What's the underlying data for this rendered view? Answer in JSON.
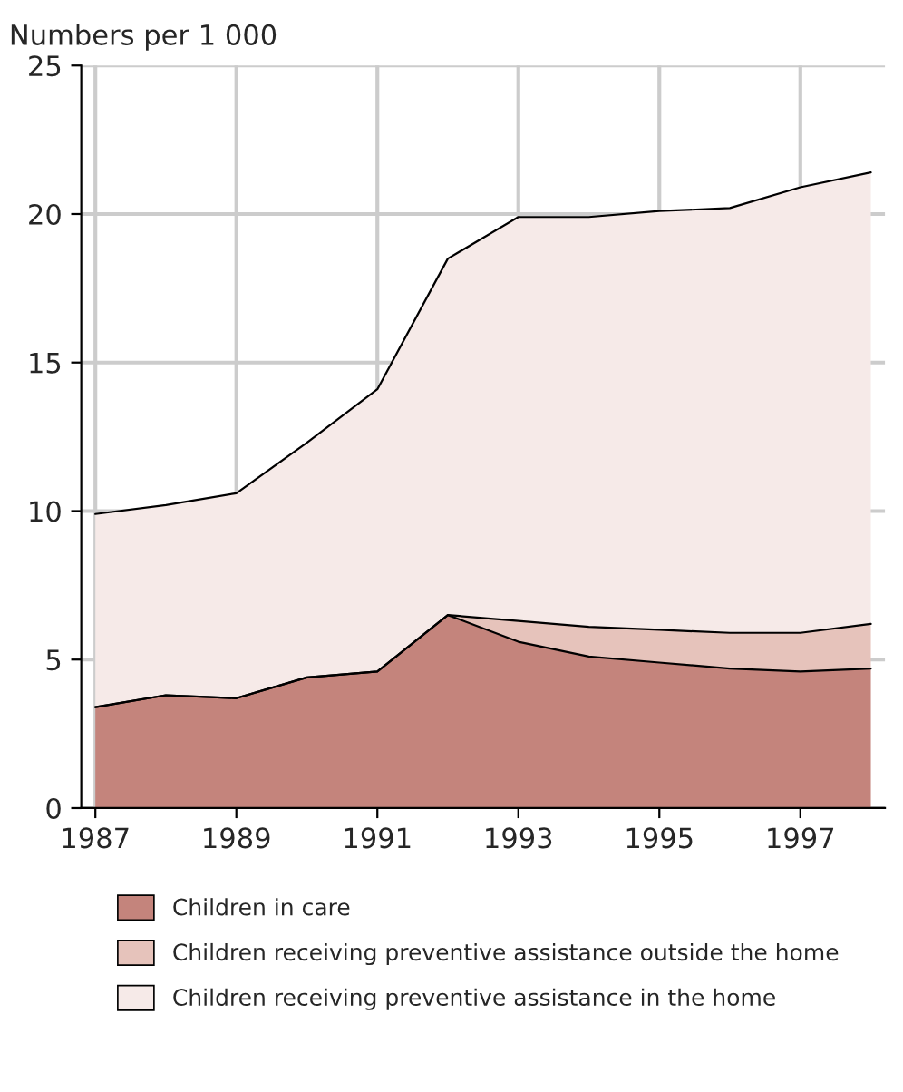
{
  "chart_data": {
    "type": "area",
    "stacked": true,
    "ylabel": "Numbers per 1 000",
    "x": [
      1987,
      1988,
      1989,
      1990,
      1991,
      1992,
      1993,
      1994,
      1995,
      1996,
      1997,
      1998
    ],
    "series": [
      {
        "name": "Children in care",
        "color": "#c4847c",
        "values": [
          3.4,
          3.8,
          3.7,
          4.4,
          4.6,
          6.5,
          5.6,
          5.1,
          4.9,
          4.7,
          4.6,
          4.7
        ]
      },
      {
        "name": "Children receiving preventive assistance outside the home",
        "color": "#e6c3bb",
        "values": [
          0,
          0,
          0,
          0,
          0,
          0,
          0.7,
          1.0,
          1.1,
          1.2,
          1.3,
          1.5
        ]
      },
      {
        "name": "Children receiving preventive assistance in the home",
        "color": "#f6eae8",
        "values": [
          6.5,
          6.4,
          6.9,
          7.9,
          9.5,
          12.0,
          13.6,
          13.8,
          14.1,
          14.3,
          15.0,
          15.2
        ]
      }
    ],
    "xlim": [
      1986.8,
      1998.2
    ],
    "xticks": [
      1987,
      1989,
      1991,
      1993,
      1995,
      1997
    ],
    "ylim": [
      0,
      25
    ],
    "yticks": [
      0,
      5,
      10,
      15,
      20,
      25
    ],
    "grid": true,
    "legend": "bottom"
  }
}
